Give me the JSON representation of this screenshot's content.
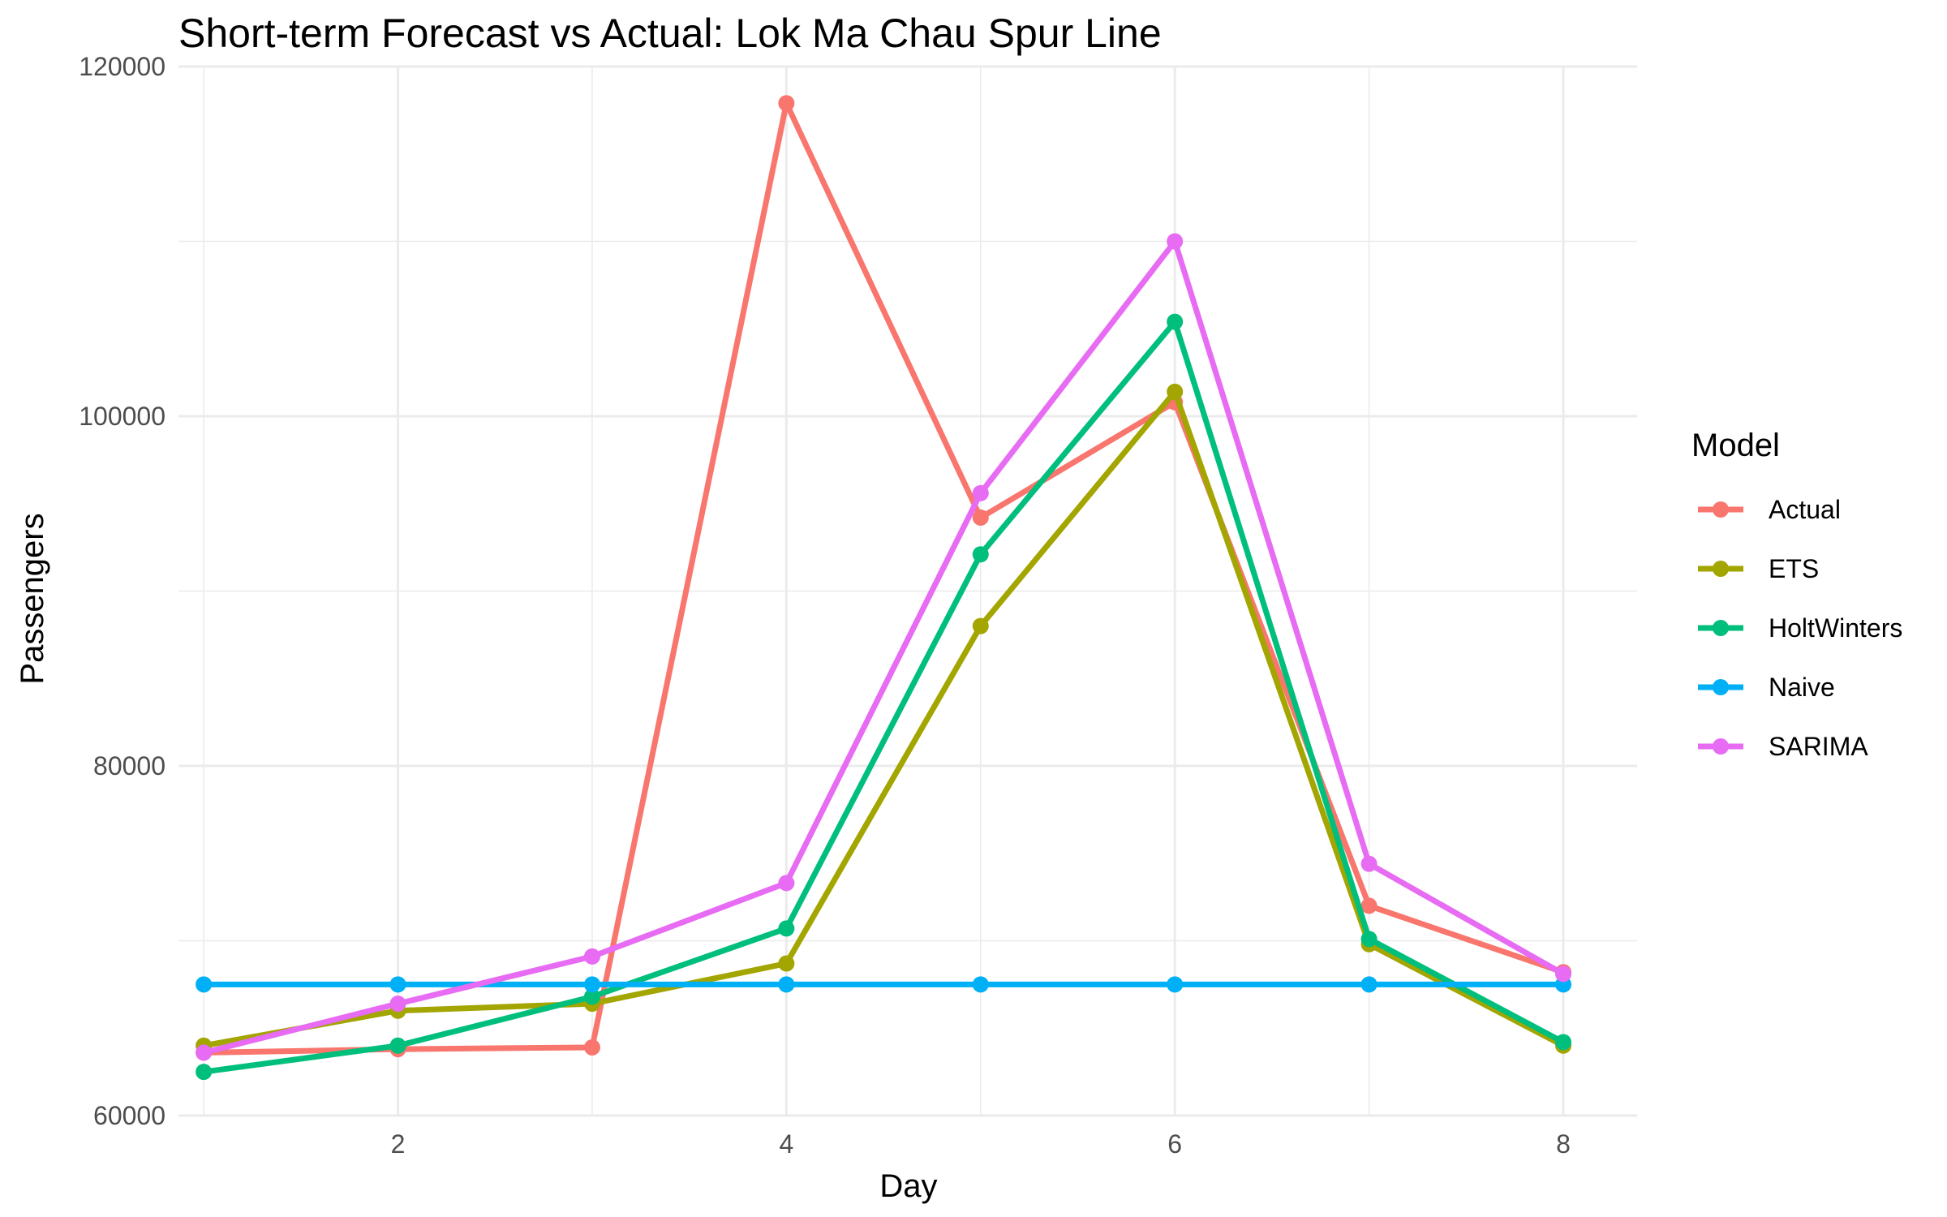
{
  "chart_data": {
    "type": "line",
    "title": "Short-term Forecast vs Actual: Lok Ma Chau Spur Line",
    "xlabel": "Day",
    "ylabel": "Passengers",
    "x": [
      1,
      2,
      3,
      4,
      5,
      6,
      7,
      8
    ],
    "xlim": [
      0.87,
      8.38
    ],
    "ylim": [
      60000,
      120000
    ],
    "x_ticks": [
      2,
      4,
      6,
      8
    ],
    "x_minor_ticks": [
      1,
      3,
      5,
      7
    ],
    "y_ticks": [
      60000,
      80000,
      100000,
      120000
    ],
    "y_minor_ticks": [
      70000,
      90000,
      110000
    ],
    "grid": true,
    "legend_title": "Model",
    "legend_position": "right",
    "series": [
      {
        "name": "Actual",
        "color": "#F8766D",
        "values": [
          63600,
          63800,
          63900,
          117900,
          94200,
          100800,
          72000,
          68200
        ]
      },
      {
        "name": "ETS",
        "color": "#A3A500",
        "values": [
          64000,
          66000,
          66400,
          68700,
          88000,
          101400,
          69800,
          64000
        ]
      },
      {
        "name": "HoltWinters",
        "color": "#00BF7D",
        "values": [
          62500,
          64000,
          66800,
          70700,
          92100,
          105400,
          70100,
          64200
        ]
      },
      {
        "name": "Naive",
        "color": "#00B0F6",
        "values": [
          67500,
          67500,
          67500,
          67500,
          67500,
          67500,
          67500,
          67500
        ]
      },
      {
        "name": "SARIMA",
        "color": "#E76BF3",
        "values": [
          63600,
          66400,
          69100,
          73300,
          95600,
          110000,
          74400,
          68100
        ]
      }
    ]
  }
}
